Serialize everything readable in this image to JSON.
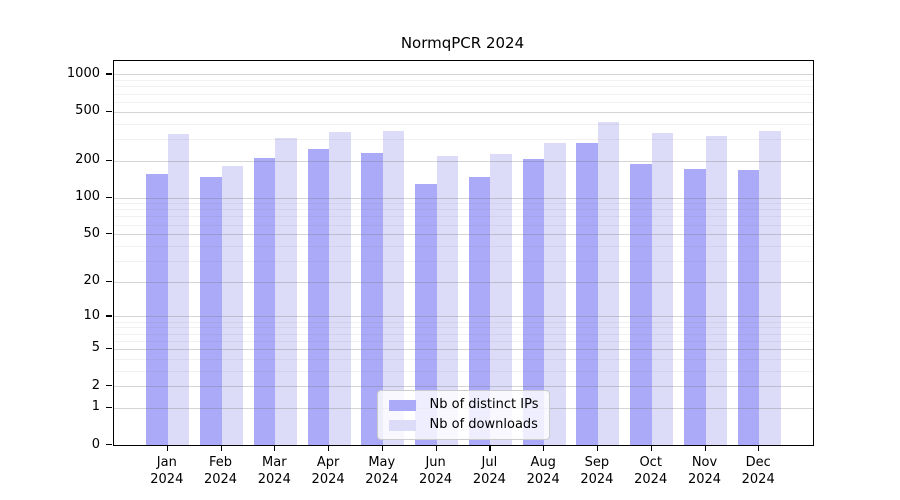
{
  "title": "NormqPCR 2024",
  "legend": {
    "items": [
      {
        "label": "Nb of distinct IPs",
        "color": "#aaaaf8"
      },
      {
        "label": "Nb of downloads",
        "color": "#dcdcf8"
      }
    ]
  },
  "chart_data": {
    "type": "bar",
    "title": "NormqPCR 2024",
    "categories": [
      "Jan 2024",
      "Feb 2024",
      "Mar 2024",
      "Apr 2024",
      "May 2024",
      "Jun 2024",
      "Jul 2024",
      "Aug 2024",
      "Sep 2024",
      "Oct 2024",
      "Nov 2024",
      "Dec 2024"
    ],
    "series": [
      {
        "name": "Nb of distinct IPs",
        "color": "#aaaaf8",
        "values": [
          156,
          148,
          209,
          248,
          232,
          128,
          147,
          205,
          276,
          186,
          170,
          168
        ]
      },
      {
        "name": "Nb of downloads",
        "color": "#dcdcf8",
        "values": [
          331,
          181,
          307,
          343,
          345,
          218,
          225,
          276,
          410,
          333,
          317,
          350
        ]
      }
    ],
    "xlabel": "",
    "ylabel": "",
    "yscale": "log1p",
    "ylim": [
      0,
      1285
    ],
    "yticks": [
      0,
      1,
      2,
      5,
      10,
      20,
      50,
      100,
      200,
      500,
      1000
    ],
    "yticks_minor": [
      3,
      4,
      6,
      7,
      8,
      9,
      30,
      40,
      60,
      70,
      80,
      90,
      300,
      400,
      600,
      700,
      800,
      900
    ],
    "grid": true,
    "legend_position": "lower center"
  }
}
